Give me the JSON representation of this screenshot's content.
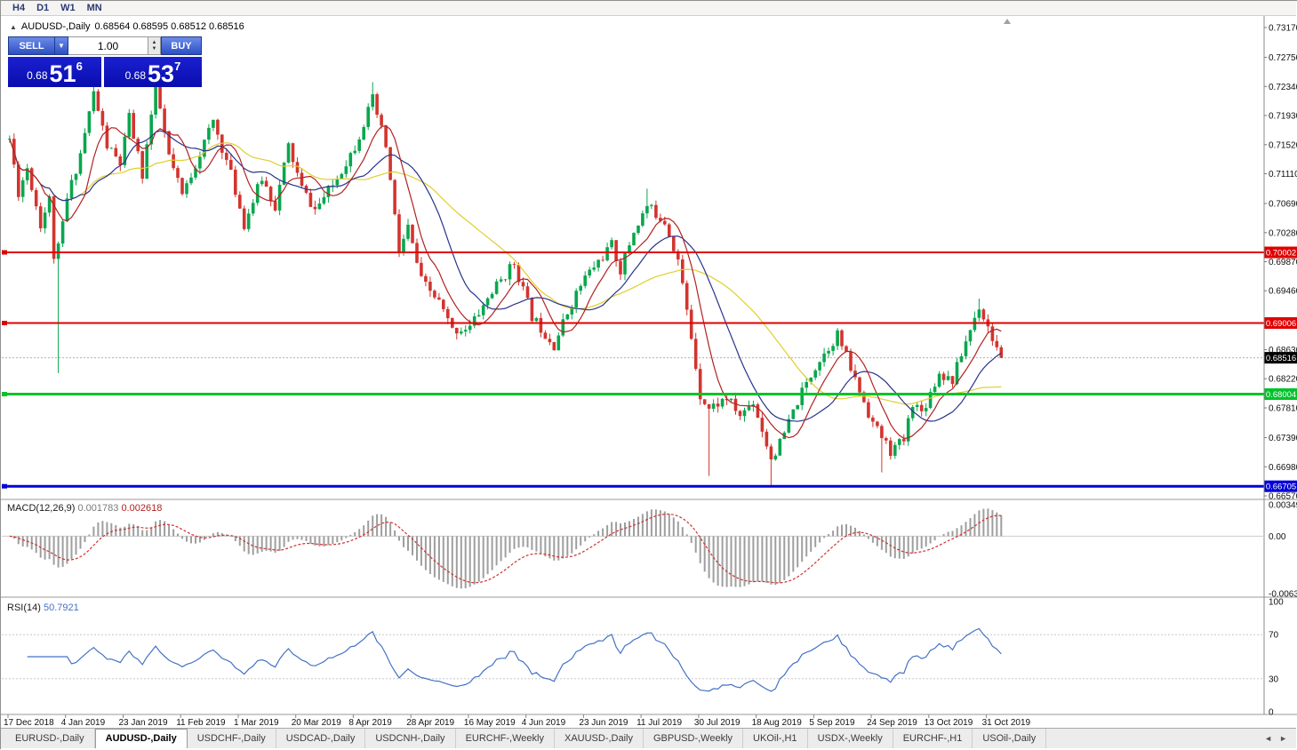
{
  "window": {
    "toolbar_timeframes": [
      "H4",
      "D1",
      "W1",
      "MN"
    ]
  },
  "header": {
    "collapse_icon": "▲",
    "symbol": "AUDUSD-,Daily",
    "ohlc": "0.68564 0.68595 0.68512 0.68516"
  },
  "trade_panel": {
    "sell_label": "SELL",
    "buy_label": "BUY",
    "volume": "1.00",
    "dropdown_icon": "▼",
    "stepper_up_icon": "▲",
    "stepper_down_icon": "▼",
    "sell_price": {
      "small": "0.68",
      "big": "51",
      "sup": "6"
    },
    "buy_price": {
      "small": "0.68",
      "big": "53",
      "sup": "7"
    }
  },
  "price_axis_ticks": [
    "0.73170",
    "0.72750",
    "0.72340",
    "0.71930",
    "0.71520",
    "0.71110",
    "0.70690",
    "0.70280",
    "0.69870",
    "0.69460",
    "0.68630",
    "0.68220",
    "0.67810",
    "0.67390",
    "0.66980",
    "0.66570"
  ],
  "indicators": {
    "macd": {
      "label": "MACD(12,26,9)",
      "value1": "0.001783",
      "value2": "0.002618",
      "axis": [
        {
          "v": 0.00349,
          "label": "0.00349"
        },
        {
          "v": 0,
          "label": "0.00"
        },
        {
          "v": -0.00637,
          "label": "-0.00637"
        }
      ]
    },
    "rsi": {
      "label": "RSI(14)",
      "value": "50.7921",
      "axis": [
        {
          "v": 100,
          "label": "100"
        },
        {
          "v": 70,
          "label": "70"
        },
        {
          "v": 30,
          "label": "30"
        },
        {
          "v": 0,
          "label": "0"
        }
      ],
      "levels": [
        70,
        30
      ]
    }
  },
  "date_axis": [
    "17 Dec 2018",
    "4 Jan 2019",
    "23 Jan 2019",
    "11 Feb 2019",
    "1 Mar 2019",
    "20 Mar 2019",
    "8 Apr 2019",
    "28 Apr 2019",
    "16 May 2019",
    "4 Jun 2019",
    "23 Jun 2019",
    "11 Jul 2019",
    "30 Jul 2019",
    "18 Aug 2019",
    "5 Sep 2019",
    "24 Sep 2019",
    "13 Oct 2019",
    "31 Oct 2019"
  ],
  "tabs": [
    {
      "label": "EURUSD-,Daily"
    },
    {
      "label": "AUDUSD-,Daily",
      "active": true
    },
    {
      "label": "USDCHF-,Daily"
    },
    {
      "label": "USDCAD-,Daily"
    },
    {
      "label": "USDCNH-,Daily"
    },
    {
      "label": "EURCHF-,Weekly"
    },
    {
      "label": "XAUUSD-,Daily"
    },
    {
      "label": "GBPUSD-,Weekly"
    },
    {
      "label": "UKOil-,H1"
    },
    {
      "label": "USDX-,Weekly"
    },
    {
      "label": "EURCHF-,H1"
    },
    {
      "label": "USOil-,Daily"
    }
  ],
  "tab_scroll": {
    "left": "◄",
    "right": "►"
  },
  "chart_data": {
    "type": "candlestick",
    "symbol": "AUDUSD",
    "timeframe": "Daily",
    "y_axis": {
      "top": 0.7317,
      "bottom": 0.6657
    },
    "candle_count": 225,
    "last_close": 0.68516,
    "noise": 0.0016,
    "wick": 0.0009,
    "seed": 11,
    "waypoints": [
      [
        0,
        0.716
      ],
      [
        2,
        0.7085
      ],
      [
        4,
        0.712
      ],
      [
        7,
        0.704
      ],
      [
        9,
        0.7075
      ],
      [
        10,
        0.6995
      ],
      [
        11,
        0.7005
      ],
      [
        13,
        0.7075
      ],
      [
        16,
        0.714
      ],
      [
        19,
        0.7225
      ],
      [
        22,
        0.715
      ],
      [
        25,
        0.7125
      ],
      [
        27,
        0.719
      ],
      [
        30,
        0.711
      ],
      [
        33,
        0.7235
      ],
      [
        36,
        0.7135
      ],
      [
        39,
        0.708
      ],
      [
        43,
        0.714
      ],
      [
        46,
        0.7185
      ],
      [
        50,
        0.711
      ],
      [
        53,
        0.704
      ],
      [
        57,
        0.7105
      ],
      [
        60,
        0.7065
      ],
      [
        63,
        0.715
      ],
      [
        66,
        0.709
      ],
      [
        69,
        0.706
      ],
      [
        73,
        0.7095
      ],
      [
        78,
        0.715
      ],
      [
        82,
        0.7215
      ],
      [
        85,
        0.715
      ],
      [
        88,
        0.7
      ],
      [
        90,
        0.7035
      ],
      [
        93,
        0.696
      ],
      [
        97,
        0.693
      ],
      [
        100,
        0.689
      ],
      [
        104,
        0.6895
      ],
      [
        109,
        0.6945
      ],
      [
        114,
        0.6985
      ],
      [
        118,
        0.691
      ],
      [
        123,
        0.687
      ],
      [
        127,
        0.693
      ],
      [
        130,
        0.6965
      ],
      [
        136,
        0.701
      ],
      [
        138,
        0.6975
      ],
      [
        141,
        0.703
      ],
      [
        144,
        0.7065
      ],
      [
        148,
        0.7045
      ],
      [
        151,
        0.699
      ],
      [
        154,
        0.688
      ],
      [
        156,
        0.68
      ],
      [
        158,
        0.678
      ],
      [
        162,
        0.6795
      ],
      [
        165,
        0.677
      ],
      [
        168,
        0.679
      ],
      [
        172,
        0.671
      ],
      [
        174,
        0.673
      ],
      [
        178,
        0.679
      ],
      [
        182,
        0.684
      ],
      [
        187,
        0.6885
      ],
      [
        191,
        0.682
      ],
      [
        195,
        0.676
      ],
      [
        199,
        0.672
      ],
      [
        202,
        0.6735
      ],
      [
        204,
        0.679
      ],
      [
        206,
        0.6775
      ],
      [
        210,
        0.683
      ],
      [
        213,
        0.682
      ],
      [
        216,
        0.6875
      ],
      [
        219,
        0.6925
      ],
      [
        221,
        0.6895
      ],
      [
        223,
        0.6865
      ],
      [
        224,
        0.68516
      ]
    ],
    "spikes": [
      {
        "i": 11,
        "low": 0.683
      },
      {
        "i": 82,
        "high": 0.724
      },
      {
        "i": 144,
        "high": 0.709
      },
      {
        "i": 158,
        "low": 0.6685
      },
      {
        "i": 172,
        "low": 0.6672
      },
      {
        "i": 197,
        "low": 0.669
      },
      {
        "i": 219,
        "high": 0.6935
      }
    ],
    "hlines": [
      {
        "value": 0.70002,
        "label": "0.70002",
        "color": "#e00000",
        "width": 2
      },
      {
        "value": 0.69006,
        "label": "0.69006",
        "color": "#e00000",
        "width": 2
      },
      {
        "value": 0.68004,
        "label": "0.68004",
        "color": "#00c22a",
        "width": 3
      },
      {
        "value": 0.66705,
        "label": "0.66705",
        "color": "#0000d8",
        "width": 3
      }
    ],
    "current_price": {
      "value": 0.68516,
      "label": "0.68516",
      "line_color": "#b0b0b0",
      "badge_color": "#000000"
    },
    "moving_averages": [
      {
        "period": 34,
        "color": "#e0ce2e"
      },
      {
        "period": 17,
        "color": "#27348b"
      },
      {
        "period": 8,
        "color": "#b22222"
      }
    ],
    "colors": {
      "bull": "#0aa64e",
      "bear": "#d3342e",
      "macd_hist": "#9e9e9e",
      "macd_signal": "#cc3333",
      "rsi": "#4472c4"
    }
  }
}
